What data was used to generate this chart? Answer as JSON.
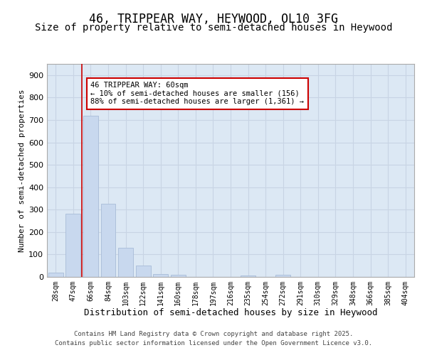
{
  "title1": "46, TRIPPEAR WAY, HEYWOOD, OL10 3FG",
  "title2": "Size of property relative to semi-detached houses in Heywood",
  "xlabel": "Distribution of semi-detached houses by size in Heywood",
  "ylabel": "Number of semi-detached properties",
  "categories": [
    "28sqm",
    "47sqm",
    "66sqm",
    "84sqm",
    "103sqm",
    "122sqm",
    "141sqm",
    "160sqm",
    "178sqm",
    "197sqm",
    "216sqm",
    "235sqm",
    "254sqm",
    "272sqm",
    "291sqm",
    "310sqm",
    "329sqm",
    "348sqm",
    "366sqm",
    "385sqm",
    "404sqm"
  ],
  "values": [
    18,
    283,
    718,
    325,
    130,
    52,
    13,
    8,
    0,
    0,
    0,
    5,
    0,
    8,
    0,
    0,
    0,
    0,
    0,
    0,
    0
  ],
  "bar_color": "#c8d8ee",
  "bar_edge_color": "#a8bcd8",
  "vline_color": "#cc0000",
  "annotation_text": "46 TRIPPEAR WAY: 60sqm\n← 10% of semi-detached houses are smaller (156)\n88% of semi-detached houses are larger (1,361) →",
  "annotation_box_edgecolor": "#cc0000",
  "ylim": [
    0,
    950
  ],
  "yticks": [
    0,
    100,
    200,
    300,
    400,
    500,
    600,
    700,
    800,
    900
  ],
  "grid_color": "#c8d4e4",
  "background_color": "#dce8f4",
  "footer_text": "Contains HM Land Registry data © Crown copyright and database right 2025.\nContains public sector information licensed under the Open Government Licence v3.0.",
  "title1_fontsize": 12,
  "title2_fontsize": 10,
  "xlabel_fontsize": 9,
  "ylabel_fontsize": 8,
  "tick_fontsize": 7,
  "annot_fontsize": 7.5,
  "footer_fontsize": 6.5
}
